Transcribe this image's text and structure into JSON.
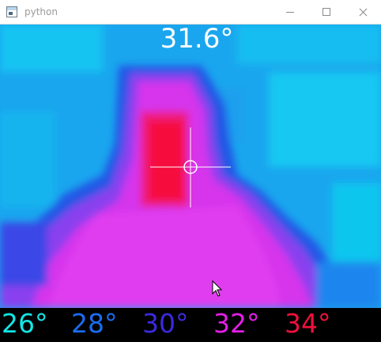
{
  "window": {
    "title": "python",
    "icon": "app-window-icon",
    "controls": [
      "minimize-icon",
      "maximize-icon",
      "close-icon"
    ]
  },
  "thermal": {
    "center_temperature": "31.6°",
    "scale": [
      {
        "label": "26°",
        "color": "#12e6e6"
      },
      {
        "label": "28°",
        "color": "#1a6cf0"
      },
      {
        "label": "30°",
        "color": "#3b2ae0"
      },
      {
        "label": "32°",
        "color": "#e41ee8"
      },
      {
        "label": "34°",
        "color": "#f0103c"
      }
    ],
    "palette": {
      "cyan": "#19b9ef",
      "azure": "#1e8ef0",
      "blue": "#2350e6",
      "violet": "#8a3cf0",
      "magenta": "#e030ee",
      "red": "#f01038"
    }
  }
}
